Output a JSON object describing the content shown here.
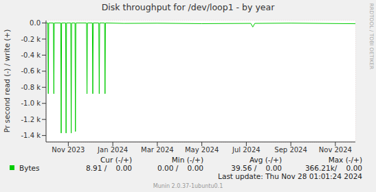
{
  "chart_data": {
    "type": "line",
    "title": "Disk throughput for /dev/loop1 - by year",
    "y_label": "Pr second read (-) / write (+)",
    "side_text": "RRDTOOL / TOBI OETIKER",
    "x": [
      -1.0,
      -0.92,
      -0.9,
      -0.88,
      -0.67,
      -0.65,
      -0.63,
      -0.34,
      -0.32,
      -0.3,
      -0.12,
      -0.1,
      -0.08,
      0.11,
      0.13,
      0.15,
      0.3,
      0.32,
      0.34,
      0.82,
      0.84,
      0.86,
      1.08,
      1.1,
      1.12,
      1.37,
      1.39,
      1.41,
      1.63,
      1.65,
      1.67,
      2.5,
      4.0,
      6.0,
      8.2,
      8.29,
      8.38,
      10.0,
      12.9
    ],
    "series": [
      {
        "name": "Bytes",
        "color": "#00cc00",
        "values": [
          0,
          0,
          -880,
          0,
          0,
          -880,
          0,
          0,
          -1370,
          0,
          0,
          -1370,
          0,
          0,
          -1370,
          0,
          0,
          -1350,
          0,
          0,
          -880,
          0,
          0,
          -880,
          0,
          0,
          -880,
          0,
          0,
          -880,
          0,
          -5,
          -3,
          -8,
          -5,
          -50,
          -5,
          -2,
          -9
        ]
      }
    ],
    "xlim": [
      -1.0,
      12.9
    ],
    "xticks": [
      {
        "value": 0,
        "label": "Nov 2023"
      },
      {
        "value": 2,
        "label": "Jan 2024"
      },
      {
        "value": 4,
        "label": "Mar 2024"
      },
      {
        "value": 6,
        "label": "May 2024"
      },
      {
        "value": 8,
        "label": "Jul 2024"
      },
      {
        "value": 10,
        "label": "Sep 2024"
      },
      {
        "value": 12,
        "label": "Nov 2024"
      }
    ],
    "ylim": [
      -1480,
      30
    ],
    "yticks": [
      {
        "value": 0,
        "label": "0.0"
      },
      {
        "value": -200,
        "label": "-0.2 k"
      },
      {
        "value": -400,
        "label": "-0.4 k"
      },
      {
        "value": -600,
        "label": "-0.6 k"
      },
      {
        "value": -800,
        "label": "-0.8 k"
      },
      {
        "value": -1000,
        "label": "-1.0 k"
      },
      {
        "value": -1200,
        "label": "-1.2 k"
      },
      {
        "value": -1400,
        "label": "-1.4 k"
      }
    ],
    "grid": true,
    "stats_table": {
      "columns": [
        "Cur (-/+)",
        "Min (-/+)",
        "Avg (-/+)",
        "Max (-/+)"
      ],
      "rows": [
        {
          "name": "Bytes",
          "cells": [
            "8.91 /    0.00",
            "0.00 /    0.00",
            "39.56 /    0.00",
            "366.21k/    0.00"
          ]
        }
      ]
    },
    "footer": "Last update: Thu Nov 28 01:01:24 2024",
    "credit": "Munin 2.0.37-1ubuntu0.1"
  }
}
